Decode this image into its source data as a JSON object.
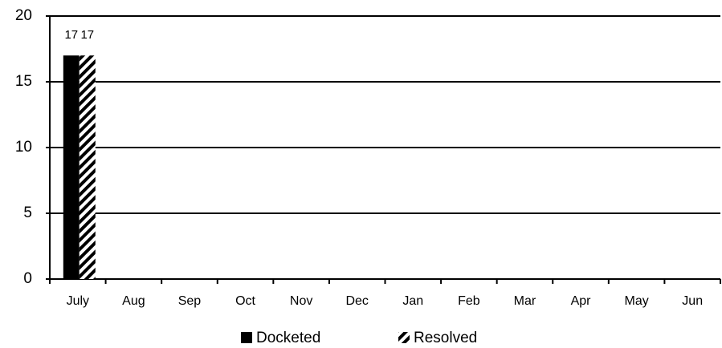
{
  "chart_data": {
    "type": "bar",
    "categories": [
      "July",
      "Aug",
      "Sep",
      "Oct",
      "Nov",
      "Dec",
      "Jan",
      "Feb",
      "Mar",
      "Apr",
      "May",
      "Jun"
    ],
    "series": [
      {
        "name": "Docketed",
        "color": "#000000",
        "fill": "solid",
        "values": [
          17,
          null,
          null,
          null,
          null,
          null,
          null,
          null,
          null,
          null,
          null,
          null
        ]
      },
      {
        "name": "Resolved",
        "color": "#000000",
        "fill": "hatch",
        "values": [
          17,
          null,
          null,
          null,
          null,
          null,
          null,
          null,
          null,
          null,
          null,
          null
        ]
      }
    ],
    "ylim": [
      0,
      20
    ],
    "yticks": [
      0,
      5,
      10,
      15,
      20
    ],
    "grid": true,
    "legend": "bottom"
  }
}
